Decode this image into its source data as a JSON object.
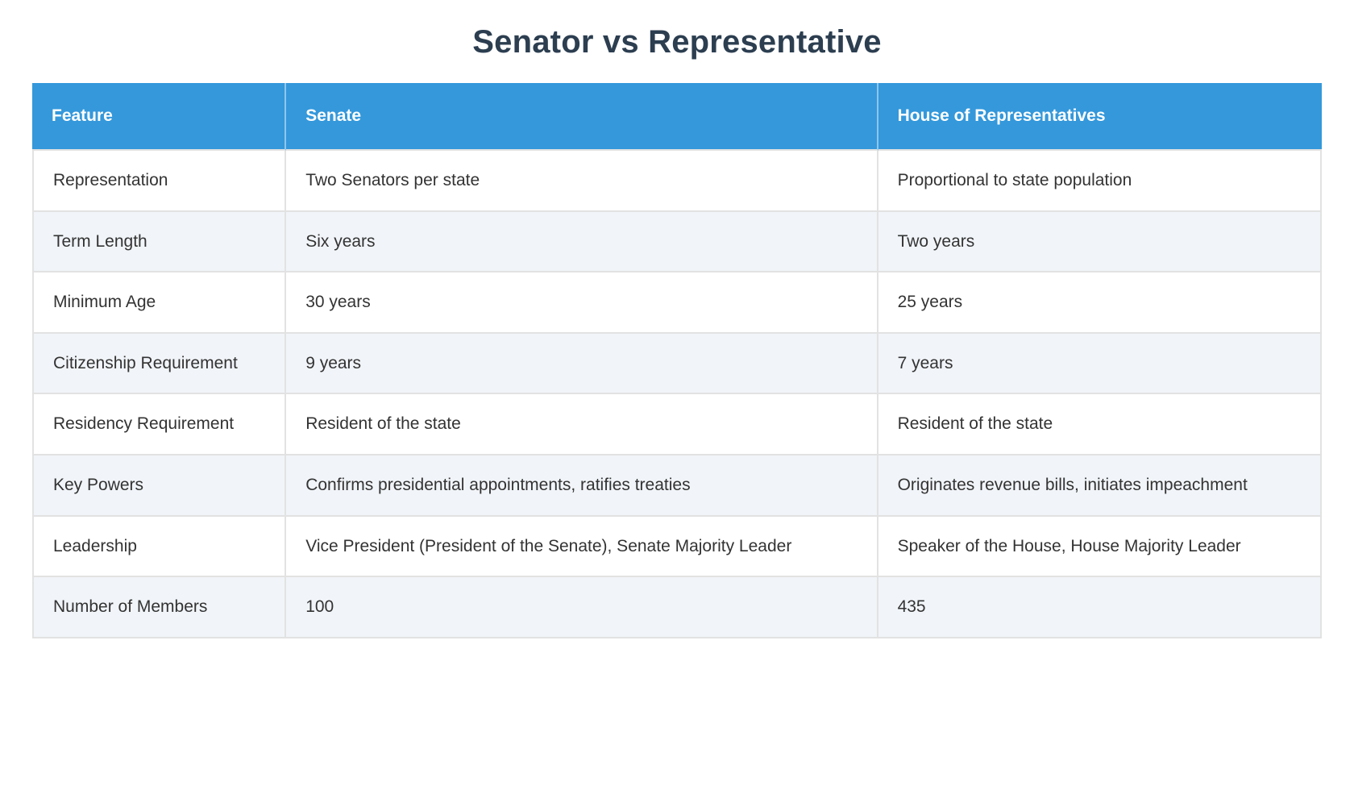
{
  "page": {
    "title": "Senator vs Representative"
  },
  "table": {
    "columns": [
      "Feature",
      "Senate",
      "House of Representatives"
    ],
    "rows": [
      {
        "feature": "Representation",
        "senate": "Two Senators per state",
        "house": "Proportional to state population"
      },
      {
        "feature": "Term Length",
        "senate": "Six years",
        "house": "Two years"
      },
      {
        "feature": "Minimum Age",
        "senate": "30 years",
        "house": "25 years"
      },
      {
        "feature": "Citizenship Requirement",
        "senate": "9 years",
        "house": "7 years"
      },
      {
        "feature": "Residency Requirement",
        "senate": "Resident of the state",
        "house": "Resident of the state"
      },
      {
        "feature": "Key Powers",
        "senate": "Confirms presidential appointments, ratifies treaties",
        "house": "Originates revenue bills, initiates impeachment"
      },
      {
        "feature": "Leadership",
        "senate": "Vice President (President of the Senate), Senate Majority Leader",
        "house": "Speaker of the House, House Majority Leader"
      },
      {
        "feature": "Number of Members",
        "senate": "100",
        "house": "435"
      }
    ]
  },
  "colors": {
    "header_bg": "#3498db",
    "header_text": "#ffffff",
    "title_text": "#2c3e50",
    "row_stripe": "#f1f4f8",
    "border": "#e2e2e2",
    "cell_text": "#333333"
  }
}
